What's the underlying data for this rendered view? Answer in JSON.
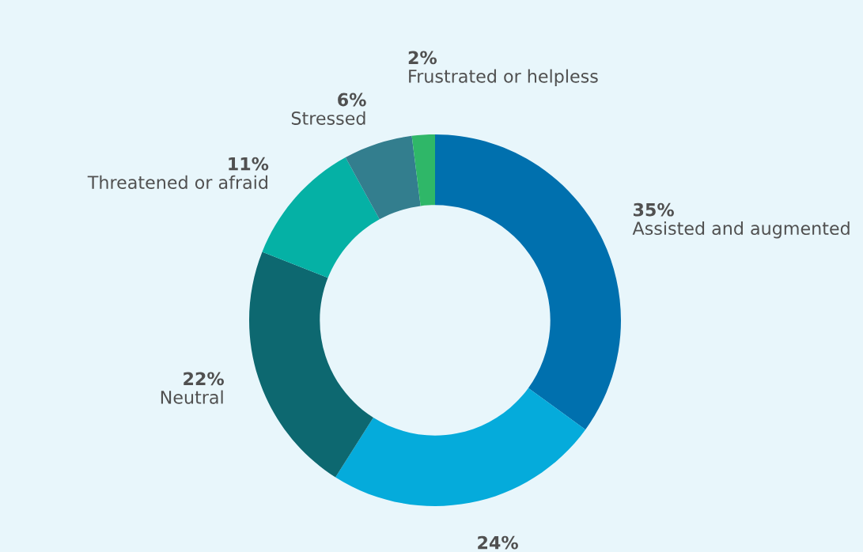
{
  "chart_data": {
    "type": "donut",
    "categories": [
      "Assisted and augmented",
      null,
      "Neutral",
      "Threatened or afraid",
      "Stressed",
      "Frustrated or helpless"
    ],
    "values": [
      35,
      24,
      22,
      11,
      6,
      2
    ],
    "colors": [
      "#0070ae",
      "#05abdb",
      "#0d6870",
      "#05b1a5",
      "#337e8e",
      "#2fb768"
    ],
    "value_labels": [
      "35%",
      "24%",
      "22%",
      "11%",
      "6%",
      "2%"
    ]
  }
}
